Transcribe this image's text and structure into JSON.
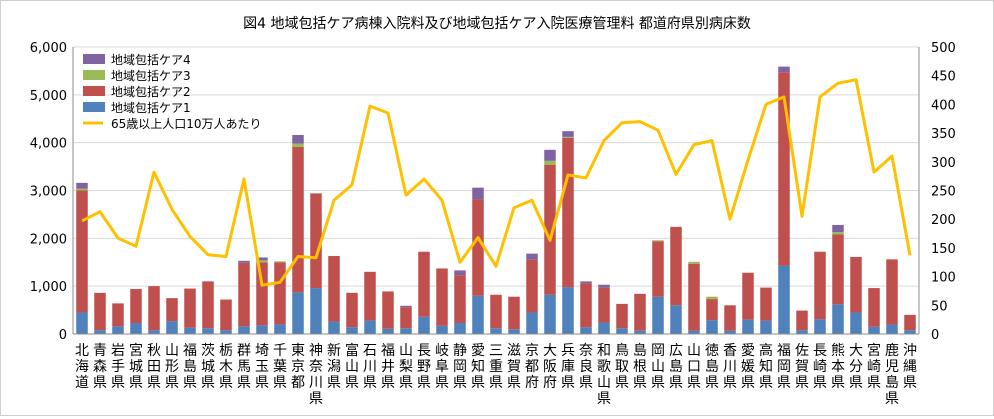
{
  "chart_data": {
    "type": "bar",
    "title": "図4 地域包括ケア病棟入院料及び地域包括ケア入院医療管理料 都道府県別病床数",
    "categories": [
      "北海道",
      "青森県",
      "岩手県",
      "宮城県",
      "秋田県",
      "山形県",
      "福島県",
      "茨城県",
      "栃木県",
      "群馬県",
      "埼玉県",
      "千葉県",
      "東京都",
      "神奈川県",
      "新潟県",
      "富山県",
      "石川県",
      "福井県",
      "山梨県",
      "長野県",
      "岐阜県",
      "静岡県",
      "愛知県",
      "三重県",
      "滋賀県",
      "京都府",
      "大阪府",
      "兵庫県",
      "奈良県",
      "和歌山県",
      "鳥取県",
      "島根県",
      "岡山県",
      "広島県",
      "山口県",
      "徳島県",
      "香川県",
      "愛媛県",
      "高知県",
      "福岡県",
      "佐賀県",
      "長崎県",
      "熊本県",
      "大分県",
      "宮崎県",
      "鹿児島県",
      "沖縄県"
    ],
    "series": [
      {
        "name": "地域包括ケア1",
        "color": "#4f81bd",
        "axis": "left",
        "values": [
          450,
          80,
          160,
          230,
          80,
          270,
          130,
          120,
          80,
          160,
          180,
          200,
          870,
          960,
          260,
          140,
          280,
          110,
          120,
          360,
          170,
          230,
          800,
          120,
          100,
          450,
          820,
          980,
          140,
          240,
          120,
          70,
          780,
          600,
          70,
          290,
          70,
          300,
          280,
          1430,
          80,
          310,
          620,
          450,
          150,
          200,
          80
        ]
      },
      {
        "name": "地域包括ケア2",
        "color": "#c0504d",
        "axis": "left",
        "values": [
          2550,
          780,
          480,
          710,
          920,
          480,
          820,
          980,
          640,
          1330,
          1320,
          1300,
          3040,
          1980,
          1370,
          720,
          1020,
          780,
          440,
          1360,
          1200,
          1000,
          2020,
          700,
          680,
          1100,
          2720,
          3120,
          920,
          730,
          510,
          770,
          1160,
          1640,
          1400,
          440,
          530,
          980,
          690,
          4040,
          410,
          1410,
          1460,
          1160,
          810,
          1360,
          320
        ]
      },
      {
        "name": "地域包括ケア3",
        "color": "#9bbb59",
        "axis": "left",
        "values": [
          40,
          0,
          0,
          0,
          0,
          0,
          0,
          0,
          0,
          0,
          40,
          20,
          70,
          0,
          0,
          0,
          0,
          0,
          0,
          0,
          0,
          0,
          0,
          0,
          0,
          0,
          80,
          20,
          0,
          0,
          0,
          0,
          20,
          0,
          40,
          50,
          0,
          0,
          0,
          0,
          0,
          0,
          50,
          0,
          0,
          0,
          0
        ]
      },
      {
        "name": "地域包括ケア4",
        "color": "#8064a2",
        "axis": "left",
        "values": [
          120,
          0,
          0,
          0,
          0,
          0,
          0,
          0,
          0,
          40,
          60,
          0,
          180,
          0,
          0,
          0,
          0,
          0,
          30,
          0,
          0,
          100,
          240,
          0,
          0,
          130,
          230,
          120,
          40,
          60,
          0,
          0,
          0,
          0,
          0,
          0,
          0,
          0,
          0,
          120,
          0,
          0,
          150,
          0,
          0,
          0,
          0
        ]
      },
      {
        "name": "65歳以上人口10万人あたり",
        "type": "line",
        "color": "#ffc000",
        "axis": "right",
        "values": [
          197,
          213,
          167,
          153,
          282,
          217,
          170,
          138,
          135,
          270,
          85,
          90,
          135,
          133,
          233,
          260,
          397,
          385,
          242,
          270,
          233,
          125,
          168,
          118,
          220,
          233,
          163,
          277,
          272,
          337,
          368,
          370,
          355,
          278,
          330,
          337,
          200,
          303,
          400,
          413,
          205,
          413,
          437,
          443,
          282,
          310,
          137
        ]
      }
    ],
    "left_axis": {
      "min": 0,
      "max": 6000,
      "ticks": [
        "0",
        "1,000",
        "2,000",
        "3,000",
        "4,000",
        "5,000",
        "6,000"
      ]
    },
    "right_axis": {
      "min": 0,
      "max": 500,
      "ticks": [
        "0",
        "50",
        "100",
        "150",
        "200",
        "250",
        "300",
        "350",
        "400",
        "450",
        "500"
      ]
    },
    "grid": true,
    "legend_position": "top-left"
  }
}
